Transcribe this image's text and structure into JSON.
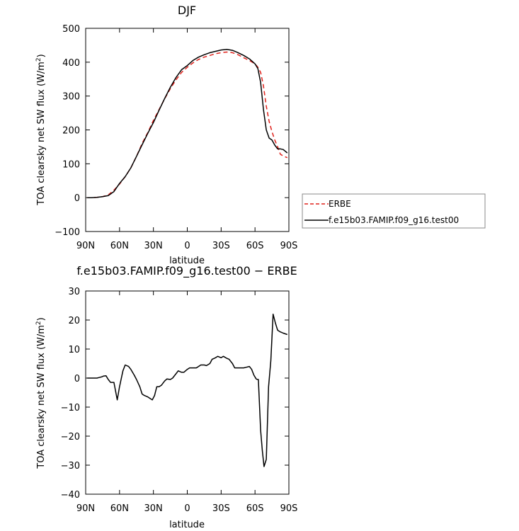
{
  "chart_data": [
    {
      "type": "line",
      "title": "DJF",
      "xlabel": "latitude",
      "ylabel": "TOA clearsky net SW flux (W/m²)",
      "xlim": [
        90,
        -90
      ],
      "ylim": [
        -100,
        500
      ],
      "xticks": [
        90,
        60,
        30,
        0,
        -30,
        -60,
        -90
      ],
      "xtick_labels": [
        "90N",
        "60N",
        "30N",
        "0",
        "30S",
        "60S",
        "90S"
      ],
      "yticks": [
        -100,
        0,
        100,
        200,
        300,
        400,
        500
      ],
      "ytick_labels": [
        "−100",
        "0",
        "100",
        "200",
        "300",
        "400",
        "500"
      ],
      "legend_position": "right",
      "series": [
        {
          "name": "ERBE",
          "color": "#e0201a",
          "dash": "dashed",
          "x": [
            88.6,
            85,
            80,
            75,
            70,
            65,
            60,
            55,
            50,
            45,
            40,
            35,
            30,
            25,
            20,
            15,
            10,
            5,
            0,
            -5,
            -10,
            -15,
            -20,
            -25,
            -30,
            -35,
            -40,
            -45,
            -50,
            -55,
            -60,
            -62.5,
            -65,
            -67.5,
            -70,
            -72.5,
            -75,
            -77.5,
            -80,
            -82.5,
            -85,
            -88.6
          ],
          "y": [
            0,
            0,
            1,
            3,
            8,
            22,
            40,
            62,
            88,
            122,
            160,
            192,
            228,
            260,
            292,
            322,
            348,
            370,
            385,
            398,
            408,
            415,
            420,
            425,
            428,
            430,
            428,
            422,
            413,
            405,
            395,
            385,
            370,
            330,
            270,
            225,
            195,
            170,
            150,
            128,
            123,
            118
          ]
        },
        {
          "name": "f.e15b03.FAMIP.f09_g16.test00",
          "color": "#000000",
          "dash": "solid",
          "x": [
            88.6,
            85,
            80,
            75,
            70,
            65,
            60,
            55,
            50,
            45,
            40,
            35,
            30,
            25,
            20,
            15,
            10,
            5,
            0,
            -5,
            -10,
            -15,
            -20,
            -25,
            -30,
            -35,
            -40,
            -45,
            -50,
            -55,
            -60,
            -62.5,
            -65,
            -67.5,
            -70,
            -72.5,
            -75,
            -77.5,
            -80,
            -82.5,
            -85,
            -88.6
          ],
          "y": [
            0,
            0,
            1,
            3,
            6,
            18,
            42,
            62,
            88,
            122,
            156,
            190,
            222,
            258,
            293,
            326,
            355,
            378,
            390,
            405,
            415,
            422,
            428,
            432,
            436,
            438,
            435,
            428,
            420,
            410,
            395,
            381,
            340,
            260,
            200,
            176,
            170,
            155,
            144,
            144,
            142,
            132
          ]
        }
      ]
    },
    {
      "type": "line",
      "title": "f.e15b03.FAMIP.f09_g16.test00 − ERBE",
      "xlabel": "latitude",
      "ylabel": "TOA clearsky net SW flux (W/m²)",
      "xlim": [
        90,
        -90
      ],
      "ylim": [
        -40,
        30
      ],
      "xticks": [
        90,
        60,
        30,
        0,
        -30,
        -60,
        -90
      ],
      "xtick_labels": [
        "90N",
        "60N",
        "30N",
        "0",
        "30S",
        "60S",
        "90S"
      ],
      "yticks": [
        -40,
        -30,
        -20,
        -10,
        0,
        10,
        20,
        30
      ],
      "ytick_labels": [
        "−40",
        "−30",
        "−20",
        "−10",
        "0",
        "10",
        "20",
        "30"
      ],
      "series": [
        {
          "color": "#000000",
          "dash": "solid",
          "x": [
            88.6,
            85,
            82,
            80,
            78,
            76,
            74,
            72,
            70,
            68,
            65,
            62,
            60,
            57,
            55,
            52,
            50,
            47,
            45,
            42,
            40,
            38,
            35,
            33,
            31,
            29,
            27,
            25,
            23,
            20,
            18,
            15,
            13,
            10,
            8,
            5,
            3,
            0,
            -2,
            -5,
            -8,
            -10,
            -12,
            -15,
            -17,
            -20,
            -22,
            -25,
            -27,
            -30,
            -32,
            -35,
            -37,
            -40,
            -42,
            -45,
            -47,
            -50,
            -52,
            -55,
            -57,
            -59,
            -61,
            -62,
            -63,
            -65,
            -66.5,
            -68,
            -70,
            -72,
            -74,
            -76,
            -78,
            -80,
            -82,
            -85,
            -88.6
          ],
          "y": [
            0,
            0,
            0,
            0,
            0.2,
            0.4,
            0.7,
            0.8,
            -0.5,
            -1.5,
            -1.5,
            -7.5,
            -3,
            2.5,
            4.5,
            4,
            3,
            1,
            -0.5,
            -3,
            -5.5,
            -6,
            -6.5,
            -7,
            -7.5,
            -6,
            -3,
            -3,
            -2.5,
            -1,
            -0.3,
            -0.5,
            0,
            1.5,
            2.5,
            2,
            2,
            3,
            3.5,
            3.5,
            3.5,
            4,
            4.5,
            4.5,
            4.3,
            5,
            6.5,
            7,
            7.5,
            7,
            7.5,
            6.8,
            6.5,
            5,
            3.5,
            3.5,
            3.5,
            3.5,
            3.7,
            4,
            3,
            1,
            -0.3,
            -0.5,
            -0.5,
            -18,
            -25,
            -30.5,
            -28,
            -3,
            6,
            22,
            19,
            16.5,
            16,
            15.5,
            15
          ]
        }
      ]
    }
  ]
}
